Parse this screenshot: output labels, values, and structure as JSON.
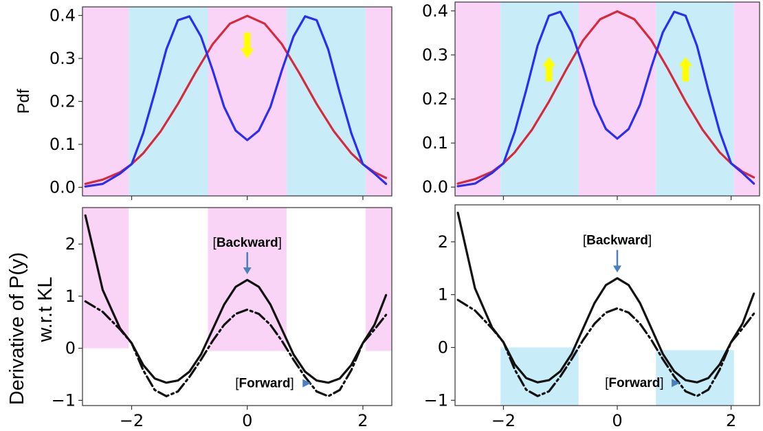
{
  "figure": {
    "shared_ylabel": "Derivative of P(y)",
    "shared_ylabel_line2": "w.r.t KL"
  },
  "colors": {
    "pink_region": "#fad4f7",
    "blue_region": "#c8ecf8",
    "red_curve": "#d62a3c",
    "blue_curve": "#2b2df0",
    "black_curve": "#111111",
    "arrow_yellow": "#ffff00",
    "annotation_arrow": "#4a7fc0"
  },
  "chart_data": [
    {
      "type": "line",
      "panel": "top-left",
      "ylabel": "Pdf",
      "xlim": [
        -2.85,
        2.5
      ],
      "ylim": [
        -0.02,
        0.42
      ],
      "xticks": [
        -2,
        0,
        2
      ],
      "yticks": [
        0.0,
        0.1,
        0.2,
        0.3,
        0.4
      ],
      "ytick_labels": [
        "0.0",
        "0.1",
        "0.2",
        "0.3",
        "0.4"
      ],
      "show_xtick_labels": false,
      "regions": [
        {
          "x0": -2.85,
          "x1": -2.05,
          "color": "pink"
        },
        {
          "x0": -2.05,
          "x1": -0.68,
          "color": "blue"
        },
        {
          "x0": -0.68,
          "x1": 0.68,
          "color": "pink"
        },
        {
          "x0": 0.68,
          "x1": 2.05,
          "color": "blue"
        },
        {
          "x0": 2.05,
          "x1": 2.5,
          "color": "pink"
        }
      ],
      "series": [
        {
          "color": "red",
          "style": "solid",
          "x": [
            -2.8,
            -2.5,
            -2.2,
            -2.0,
            -1.8,
            -1.5,
            -1.2,
            -0.9,
            -0.6,
            -0.3,
            0.0,
            0.3,
            0.6,
            0.9,
            1.2,
            1.5,
            1.8,
            2.0,
            2.2,
            2.4
          ],
          "y": [
            0.008,
            0.018,
            0.035,
            0.054,
            0.079,
            0.13,
            0.194,
            0.266,
            0.333,
            0.381,
            0.399,
            0.381,
            0.333,
            0.266,
            0.194,
            0.13,
            0.079,
            0.054,
            0.035,
            0.022
          ]
        },
        {
          "color": "blue",
          "style": "solid",
          "x": [
            -2.8,
            -2.5,
            -2.2,
            -2.0,
            -1.8,
            -1.6,
            -1.4,
            -1.2,
            -1.0,
            -0.8,
            -0.6,
            -0.4,
            -0.2,
            0.0,
            0.2,
            0.4,
            0.6,
            0.8,
            1.0,
            1.2,
            1.4,
            1.6,
            1.8,
            2.0,
            2.2,
            2.4
          ],
          "y": [
            0.002,
            0.008,
            0.032,
            0.054,
            0.126,
            0.22,
            0.321,
            0.389,
            0.398,
            0.351,
            0.273,
            0.187,
            0.132,
            0.11,
            0.132,
            0.187,
            0.273,
            0.351,
            0.398,
            0.389,
            0.321,
            0.22,
            0.126,
            0.054,
            0.032,
            0.008
          ]
        }
      ],
      "arrows": [
        {
          "x": 0.0,
          "y_from": 0.36,
          "y_to": 0.3,
          "direction": "down"
        }
      ]
    },
    {
      "type": "line",
      "panel": "top-right",
      "ylabel": "",
      "xlim": [
        -2.85,
        2.5
      ],
      "ylim": [
        -0.02,
        0.42
      ],
      "xticks": [
        -2,
        0,
        2
      ],
      "yticks": [
        0.0,
        0.1,
        0.2,
        0.3,
        0.4
      ],
      "ytick_labels": [
        "0.0",
        "0.1",
        "0.2",
        "0.3",
        "0.4"
      ],
      "show_xtick_labels": false,
      "regions": [
        {
          "x0": -2.85,
          "x1": -2.05,
          "color": "pink"
        },
        {
          "x0": -2.05,
          "x1": -0.68,
          "color": "blue"
        },
        {
          "x0": -0.68,
          "x1": 0.68,
          "color": "pink"
        },
        {
          "x0": 0.68,
          "x1": 2.05,
          "color": "blue"
        },
        {
          "x0": 2.05,
          "x1": 2.5,
          "color": "pink"
        }
      ],
      "series": [
        {
          "color": "red",
          "style": "solid",
          "x": [
            -2.8,
            -2.5,
            -2.2,
            -2.0,
            -1.8,
            -1.5,
            -1.2,
            -0.9,
            -0.6,
            -0.3,
            0.0,
            0.3,
            0.6,
            0.9,
            1.2,
            1.5,
            1.8,
            2.0,
            2.2,
            2.4
          ],
          "y": [
            0.008,
            0.018,
            0.035,
            0.054,
            0.079,
            0.13,
            0.194,
            0.266,
            0.333,
            0.381,
            0.399,
            0.381,
            0.333,
            0.266,
            0.194,
            0.13,
            0.079,
            0.054,
            0.035,
            0.022
          ]
        },
        {
          "color": "blue",
          "style": "solid",
          "x": [
            -2.8,
            -2.5,
            -2.2,
            -2.0,
            -1.8,
            -1.6,
            -1.4,
            -1.2,
            -1.0,
            -0.8,
            -0.6,
            -0.4,
            -0.2,
            0.0,
            0.2,
            0.4,
            0.6,
            0.8,
            1.0,
            1.2,
            1.4,
            1.6,
            1.8,
            2.0,
            2.2,
            2.4
          ],
          "y": [
            0.002,
            0.008,
            0.032,
            0.054,
            0.126,
            0.22,
            0.321,
            0.389,
            0.398,
            0.351,
            0.273,
            0.187,
            0.132,
            0.11,
            0.132,
            0.187,
            0.273,
            0.351,
            0.398,
            0.389,
            0.321,
            0.22,
            0.126,
            0.054,
            0.032,
            0.008
          ]
        }
      ],
      "arrows": [
        {
          "x": -1.2,
          "y_from": 0.24,
          "y_to": 0.295,
          "direction": "up"
        },
        {
          "x": 1.2,
          "y_from": 0.24,
          "y_to": 0.295,
          "direction": "up"
        }
      ]
    },
    {
      "type": "line",
      "panel": "bottom-left",
      "ylabel": "",
      "xlim": [
        -2.85,
        2.5
      ],
      "ylim": [
        -1.1,
        2.7
      ],
      "xticks": [
        -2,
        0,
        2
      ],
      "xtick_labels": [
        "−2",
        "0",
        "2"
      ],
      "yticks": [
        -1,
        0,
        1,
        2
      ],
      "ytick_labels": [
        "−1",
        "0",
        "1",
        "2"
      ],
      "show_xtick_labels": true,
      "regions": [
        {
          "x0": -2.85,
          "x1": -2.05,
          "y0": 0.0,
          "y1": 2.7,
          "color": "pink"
        },
        {
          "x0": -0.68,
          "x1": 0.68,
          "y0": -0.05,
          "y1": 2.7,
          "color": "pink"
        },
        {
          "x0": 2.05,
          "x1": 2.5,
          "y0": -0.05,
          "y1": 2.7,
          "color": "pink"
        }
      ],
      "series": [
        {
          "color": "black",
          "style": "solid",
          "x": [
            -2.8,
            -2.5,
            -2.2,
            -2.0,
            -1.8,
            -1.6,
            -1.4,
            -1.2,
            -1.0,
            -0.8,
            -0.6,
            -0.4,
            -0.2,
            0.0,
            0.2,
            0.4,
            0.6,
            0.8,
            1.0,
            1.2,
            1.4,
            1.6,
            1.8,
            2.0,
            2.2,
            2.4
          ],
          "y": [
            2.55,
            1.12,
            0.38,
            0.1,
            -0.32,
            -0.58,
            -0.66,
            -0.62,
            -0.45,
            -0.12,
            0.36,
            0.84,
            1.18,
            1.31,
            1.18,
            0.84,
            0.36,
            -0.12,
            -0.45,
            -0.62,
            -0.66,
            -0.58,
            -0.32,
            0.1,
            0.45,
            1.02
          ]
        },
        {
          "color": "black",
          "style": "dashdot",
          "x": [
            -2.8,
            -2.5,
            -2.2,
            -2.0,
            -1.8,
            -1.6,
            -1.4,
            -1.2,
            -1.0,
            -0.8,
            -0.6,
            -0.4,
            -0.2,
            0.0,
            0.2,
            0.4,
            0.6,
            0.8,
            1.0,
            1.2,
            1.4,
            1.6,
            1.8,
            2.0,
            2.2,
            2.4
          ],
          "y": [
            0.9,
            0.7,
            0.36,
            0.1,
            -0.42,
            -0.8,
            -0.92,
            -0.83,
            -0.55,
            -0.22,
            0.14,
            0.45,
            0.66,
            0.74,
            0.66,
            0.45,
            0.14,
            -0.22,
            -0.55,
            -0.83,
            -0.92,
            -0.8,
            -0.42,
            0.1,
            0.36,
            0.64
          ]
        }
      ],
      "annotations": [
        {
          "label": "[Backward]",
          "bracket_left": "[",
          "bold_text": "Backward",
          "bracket_right": "]",
          "x": 0.0,
          "y": 1.95,
          "arrow_to_y": 1.42,
          "arrow_dir": "down"
        },
        {
          "label": "[Forward]",
          "bracket_left": "[",
          "bold_text": "Forward",
          "bracket_right": "]",
          "x": 0.3,
          "y": -0.75,
          "arrow_to_x": 1.1,
          "arrow_dir": "right"
        }
      ]
    },
    {
      "type": "line",
      "panel": "bottom-right",
      "ylabel": "",
      "xlim": [
        -2.85,
        2.5
      ],
      "ylim": [
        -1.1,
        2.7
      ],
      "xticks": [
        -2,
        0,
        2
      ],
      "xtick_labels": [
        "−2",
        "0",
        "2"
      ],
      "yticks": [
        -1,
        0,
        1,
        2
      ],
      "ytick_labels": [
        "−1",
        "0",
        "1",
        "2"
      ],
      "show_xtick_labels": true,
      "regions": [
        {
          "x0": -2.05,
          "x1": -0.68,
          "y0": -1.1,
          "y1": 0.0,
          "color": "blue"
        },
        {
          "x0": 0.68,
          "x1": 2.05,
          "y0": -1.1,
          "y1": -0.05,
          "color": "blue"
        }
      ],
      "series": [
        {
          "color": "black",
          "style": "solid",
          "x": [
            -2.8,
            -2.5,
            -2.2,
            -2.0,
            -1.8,
            -1.6,
            -1.4,
            -1.2,
            -1.0,
            -0.8,
            -0.6,
            -0.4,
            -0.2,
            0.0,
            0.2,
            0.4,
            0.6,
            0.8,
            1.0,
            1.2,
            1.4,
            1.6,
            1.8,
            2.0,
            2.2,
            2.4
          ],
          "y": [
            2.55,
            1.12,
            0.38,
            0.1,
            -0.32,
            -0.58,
            -0.66,
            -0.62,
            -0.45,
            -0.12,
            0.36,
            0.84,
            1.18,
            1.31,
            1.18,
            0.84,
            0.36,
            -0.12,
            -0.45,
            -0.62,
            -0.66,
            -0.58,
            -0.32,
            0.1,
            0.45,
            1.02
          ]
        },
        {
          "color": "black",
          "style": "dashdot",
          "x": [
            -2.8,
            -2.5,
            -2.2,
            -2.0,
            -1.8,
            -1.6,
            -1.4,
            -1.2,
            -1.0,
            -0.8,
            -0.6,
            -0.4,
            -0.2,
            0.0,
            0.2,
            0.4,
            0.6,
            0.8,
            1.0,
            1.2,
            1.4,
            1.6,
            1.8,
            2.0,
            2.2,
            2.4
          ],
          "y": [
            0.9,
            0.7,
            0.36,
            0.1,
            -0.42,
            -0.8,
            -0.92,
            -0.83,
            -0.55,
            -0.22,
            0.14,
            0.45,
            0.66,
            0.74,
            0.66,
            0.45,
            0.14,
            -0.22,
            -0.55,
            -0.83,
            -0.92,
            -0.8,
            -0.42,
            0.1,
            0.36,
            0.64
          ]
        }
      ],
      "annotations": [
        {
          "label": "[Backward]",
          "bracket_left": "[",
          "bold_text": "Backward",
          "bracket_right": "]",
          "x": 0.0,
          "y": 1.95,
          "arrow_to_y": 1.42,
          "arrow_dir": "down"
        },
        {
          "label": "[Forward]",
          "bracket_left": "[",
          "bold_text": "Forward",
          "bracket_right": "]",
          "x": 0.3,
          "y": -0.75,
          "arrow_to_x": 1.1,
          "arrow_dir": "right"
        }
      ]
    }
  ]
}
